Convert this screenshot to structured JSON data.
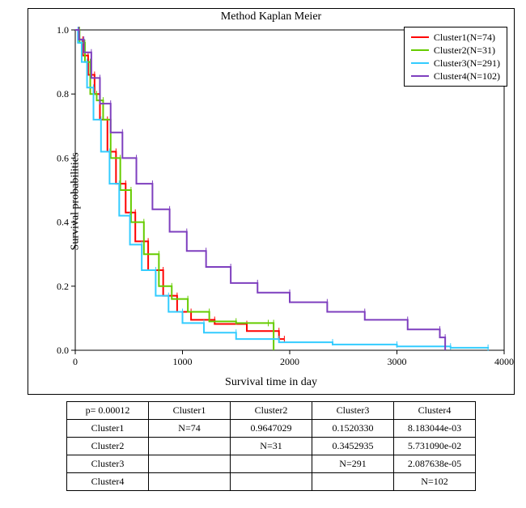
{
  "chart": {
    "type": "kaplan-meier-step",
    "title": "Method Kaplan Meier",
    "ylabel": "Survival probabilities",
    "xlabel": "Survival time in day",
    "background_color": "#ffffff",
    "axis_color": "#000000",
    "tick_fontsize": 12,
    "label_fontsize": 14,
    "title_fontsize": 14,
    "line_width": 2,
    "xlim": [
      0,
      4000
    ],
    "ylim": [
      0.0,
      1.0
    ],
    "xticks": [
      0,
      1000,
      2000,
      3000,
      4000
    ],
    "yticks": [
      0.0,
      0.2,
      0.4,
      0.6,
      0.8,
      1.0
    ],
    "legend_position": "top-right",
    "series": [
      {
        "name": "Cluster1(N=74)",
        "color": "#ff0000",
        "points": [
          [
            0,
            1.0
          ],
          [
            30,
            0.97
          ],
          [
            70,
            0.92
          ],
          [
            120,
            0.86
          ],
          [
            180,
            0.8
          ],
          [
            230,
            0.72
          ],
          [
            300,
            0.62
          ],
          [
            380,
            0.52
          ],
          [
            470,
            0.43
          ],
          [
            560,
            0.34
          ],
          [
            680,
            0.25
          ],
          [
            820,
            0.17
          ],
          [
            950,
            0.12
          ],
          [
            1080,
            0.095
          ],
          [
            1300,
            0.082
          ],
          [
            1600,
            0.06
          ],
          [
            1900,
            0.035
          ],
          [
            1950,
            0.035
          ]
        ]
      },
      {
        "name": "Cluster2(N=31)",
        "color": "#66cc00",
        "points": [
          [
            0,
            1.0
          ],
          [
            40,
            0.96
          ],
          [
            90,
            0.9
          ],
          [
            140,
            0.8
          ],
          [
            200,
            0.78
          ],
          [
            260,
            0.72
          ],
          [
            330,
            0.6
          ],
          [
            420,
            0.5
          ],
          [
            520,
            0.4
          ],
          [
            640,
            0.3
          ],
          [
            780,
            0.2
          ],
          [
            900,
            0.16
          ],
          [
            1050,
            0.12
          ],
          [
            1250,
            0.09
          ],
          [
            1500,
            0.085
          ],
          [
            1800,
            0.085
          ],
          [
            1850,
            0.0
          ]
        ]
      },
      {
        "name": "Cluster3(N=291)",
        "color": "#33ccff",
        "points": [
          [
            0,
            1.0
          ],
          [
            25,
            0.96
          ],
          [
            60,
            0.9
          ],
          [
            110,
            0.82
          ],
          [
            170,
            0.72
          ],
          [
            240,
            0.62
          ],
          [
            320,
            0.52
          ],
          [
            410,
            0.42
          ],
          [
            510,
            0.33
          ],
          [
            620,
            0.25
          ],
          [
            750,
            0.17
          ],
          [
            870,
            0.12
          ],
          [
            1000,
            0.085
          ],
          [
            1200,
            0.055
          ],
          [
            1500,
            0.035
          ],
          [
            1900,
            0.025
          ],
          [
            2400,
            0.018
          ],
          [
            3000,
            0.012
          ],
          [
            3500,
            0.008
          ],
          [
            3850,
            0.005
          ]
        ]
      },
      {
        "name": "Cluster4(N=102)",
        "color": "#7e3fbf",
        "points": [
          [
            0,
            1.0
          ],
          [
            35,
            0.97
          ],
          [
            80,
            0.93
          ],
          [
            150,
            0.85
          ],
          [
            230,
            0.77
          ],
          [
            330,
            0.68
          ],
          [
            440,
            0.6
          ],
          [
            570,
            0.52
          ],
          [
            720,
            0.44
          ],
          [
            880,
            0.37
          ],
          [
            1040,
            0.31
          ],
          [
            1220,
            0.26
          ],
          [
            1450,
            0.21
          ],
          [
            1700,
            0.18
          ],
          [
            2000,
            0.15
          ],
          [
            2350,
            0.12
          ],
          [
            2700,
            0.095
          ],
          [
            3100,
            0.065
          ],
          [
            3400,
            0.04
          ],
          [
            3450,
            0.0
          ]
        ]
      }
    ]
  },
  "table": {
    "header": [
      "p= 0.00012",
      "Cluster1",
      "Cluster2",
      "Cluster3",
      "Cluster4"
    ],
    "rows": [
      [
        "Cluster1",
        "N=74",
        "0.9647029",
        "0.1520330",
        "8.183044e-03"
      ],
      [
        "Cluster2",
        "",
        "N=31",
        "0.3452935",
        "5.731090e-02"
      ],
      [
        "Cluster3",
        "",
        "",
        "N=291",
        "2.087638e-05"
      ],
      [
        "Cluster4",
        "",
        "",
        "",
        "N=102"
      ]
    ]
  }
}
